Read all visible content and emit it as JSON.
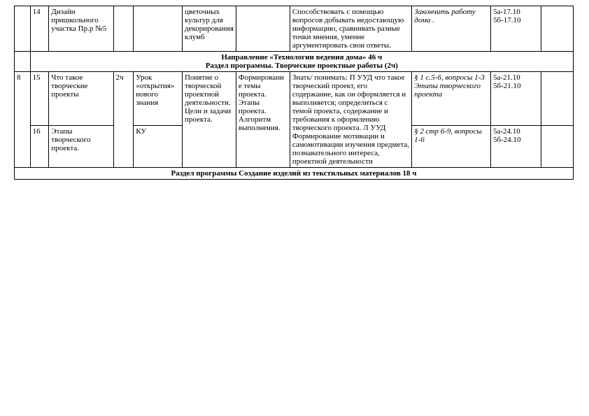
{
  "row14": {
    "col1": "14",
    "col2": "Дизайн пришкольного участка Пр.р №5",
    "col5": "цветочных культур для декорирования клумб",
    "col7": "Способствовать с помощью вопросов добывать недостающую информацию, сравнивать разные точки мнения, умение аргументировать свои ответы.",
    "col8": "Закончить работу дома .",
    "col9a": "5а-17.10",
    "col9b": "5б-17.10"
  },
  "header1": {
    "line1": "Направление «Технологии ведения дома» 46 ч",
    "line2": "Раздел программы. Творческие проектные работы (2ч)"
  },
  "row15": {
    "col0": "8",
    "col1": "15",
    "col2": "Что такое творческие проекты",
    "col3": "2ч",
    "col4": "Урок «открытия» нового знания",
    "col5": "Понятие о творческой проектной деятельности. Цели и задачи проекта.",
    "col6": "Формирование темы проекта. Этапы проекта. Алгоритм выполнения.",
    "col7": "Знать/ понимать: П УУД что такое творческий проект, его содержание, как он оформляется и выполняется; определиться с темой проекта, содержание и требования к оформлению творческого проекта. Л УУД Формирование мотивации и самомотивации изучения предмета, познавательного интереса, проектной деятельности",
    "col8": "§ 1 с.5-6, вопросы 1-3 Этапы творческого проекта",
    "col9a": "5а-21.10",
    "col9b": "5б-21.10"
  },
  "row16": {
    "col1": "16",
    "col2": "Этапы творческого проекта.",
    "col4": "КУ",
    "col8": " § 2 стр 6-9, вопросы 1-6",
    "col9a": "5а-24.10",
    "col9b": "5б-24.10"
  },
  "header2": {
    "line1": "Раздел программы Создание изделий из текстильных материалов 18 ч"
  }
}
